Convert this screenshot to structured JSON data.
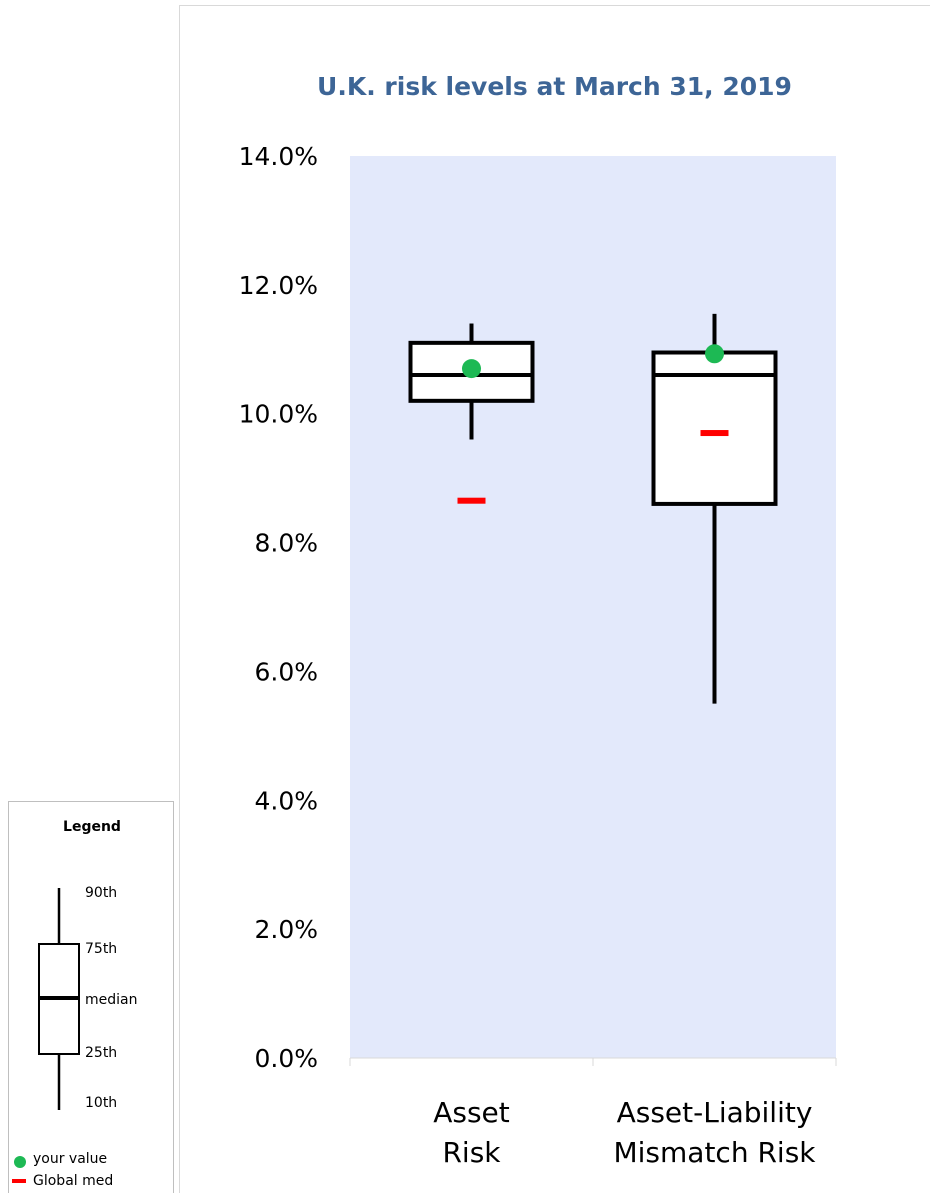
{
  "chart_data": {
    "type": "box",
    "title": "U.K. risk levels at March 31, 2019",
    "y_ticks": [
      "0.0%",
      "2.0%",
      "4.0%",
      "6.0%",
      "8.0%",
      "10.0%",
      "12.0%",
      "14.0%"
    ],
    "ylim": [
      0,
      14
    ],
    "categories": [
      {
        "label_line1": "Asset",
        "label_line2": "Risk"
      },
      {
        "label_line1": "Asset-Liability",
        "label_line2": "Mismatch Risk"
      }
    ],
    "boxes": [
      {
        "p10": 9.6,
        "p25": 10.2,
        "median": 10.6,
        "p75": 11.1,
        "p90": 11.4,
        "your_value": 10.7,
        "global_median": 8.65
      },
      {
        "p10": 5.5,
        "p25": 8.6,
        "median": 10.6,
        "p75": 10.95,
        "p90": 11.55,
        "your_value": 10.93,
        "global_median": 9.7
      }
    ],
    "colors": {
      "plot_bg": "#e3e9fb",
      "title": "#3d6596",
      "your_value": "#1db954",
      "global_median": "#ff0000"
    }
  },
  "legend": {
    "title": "Legend",
    "p90": "90th",
    "p75": "75th",
    "median": "median",
    "p25": "25th",
    "p10": "10th",
    "your_value": "your value",
    "global_med": "Global med"
  }
}
